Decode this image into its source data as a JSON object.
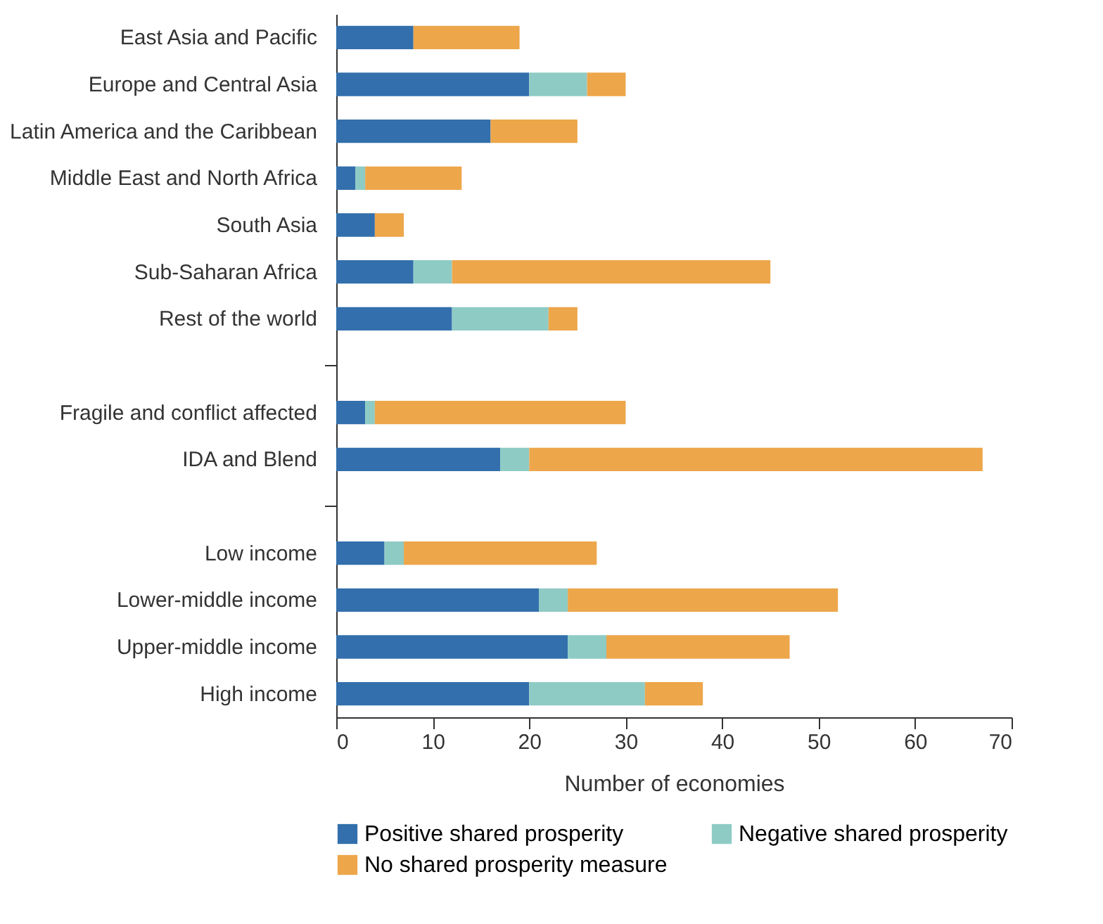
{
  "chart_data": {
    "type": "bar",
    "orientation": "horizontal",
    "stacked": true,
    "categories": [
      "East Asia and Pacific",
      "Europe and Central Asia",
      "Latin America and the Caribbean",
      "Middle East and North Africa",
      "South Asia",
      "Sub-Saharan Africa",
      "Rest of the world",
      null,
      "Fragile and conflict affected",
      "IDA and Blend",
      null,
      "Low income",
      "Lower-middle income",
      "Upper-middle income",
      "High income"
    ],
    "series": [
      {
        "name": "Positive shared prosperity",
        "color": "#336fac",
        "values": [
          8,
          20,
          16,
          2,
          4,
          8,
          12,
          null,
          3,
          17,
          null,
          5,
          21,
          24,
          20
        ]
      },
      {
        "name": "Negative shared prosperity",
        "color": "#8ecbc5",
        "values": [
          0,
          6,
          0,
          1,
          0,
          4,
          10,
          null,
          1,
          3,
          null,
          2,
          3,
          4,
          12
        ]
      },
      {
        "name": "No shared prosperity measure",
        "color": "#eda64a",
        "values": [
          11,
          4,
          9,
          10,
          3,
          33,
          3,
          null,
          26,
          47,
          null,
          20,
          28,
          19,
          6
        ]
      }
    ],
    "xlabel": "Number of economies",
    "xlim": [
      0,
      70
    ],
    "xticks": [
      0,
      10,
      20,
      30,
      40,
      50,
      60,
      70
    ],
    "grid": false,
    "legend": "bottom"
  }
}
